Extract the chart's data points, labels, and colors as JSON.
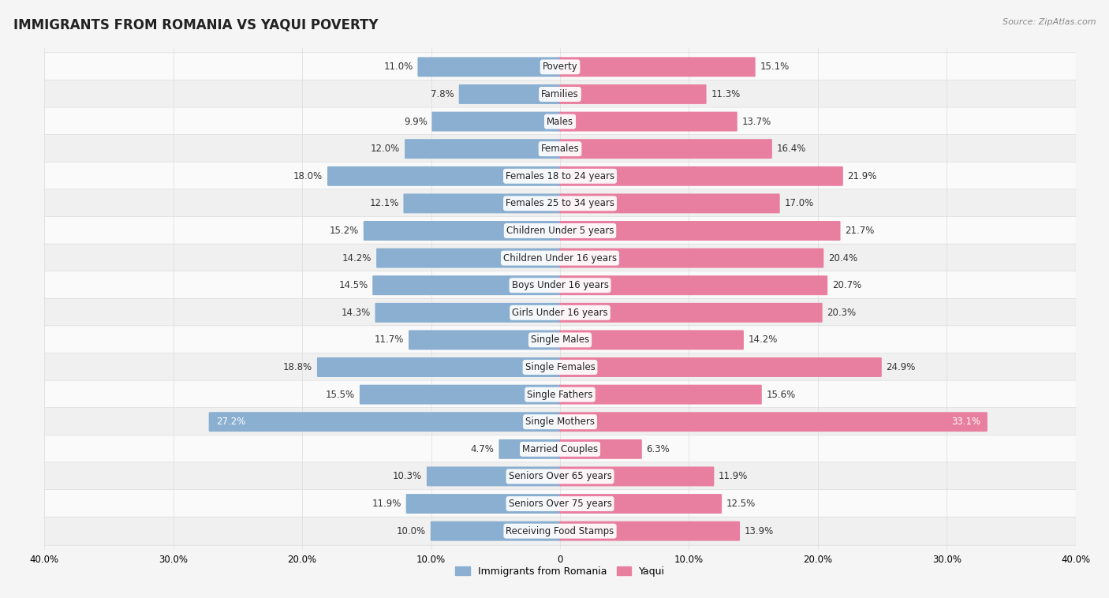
{
  "title": "IMMIGRANTS FROM ROMANIA VS YAQUI POVERTY",
  "source": "Source: ZipAtlas.com",
  "categories": [
    "Poverty",
    "Families",
    "Males",
    "Females",
    "Females 18 to 24 years",
    "Females 25 to 34 years",
    "Children Under 5 years",
    "Children Under 16 years",
    "Boys Under 16 years",
    "Girls Under 16 years",
    "Single Males",
    "Single Females",
    "Single Fathers",
    "Single Mothers",
    "Married Couples",
    "Seniors Over 65 years",
    "Seniors Over 75 years",
    "Receiving Food Stamps"
  ],
  "romania_values": [
    11.0,
    7.8,
    9.9,
    12.0,
    18.0,
    12.1,
    15.2,
    14.2,
    14.5,
    14.3,
    11.7,
    18.8,
    15.5,
    27.2,
    4.7,
    10.3,
    11.9,
    10.0
  ],
  "yaqui_values": [
    15.1,
    11.3,
    13.7,
    16.4,
    21.9,
    17.0,
    21.7,
    20.4,
    20.7,
    20.3,
    14.2,
    24.9,
    15.6,
    33.1,
    6.3,
    11.9,
    12.5,
    13.9
  ],
  "romania_color": "#8aafd0",
  "yaqui_color": "#e87fa0",
  "romania_color_light": "#b0cce4",
  "yaqui_color_light": "#f0a8be",
  "romania_label": "Immigrants from Romania",
  "yaqui_label": "Yaqui",
  "xlim": 40.0,
  "row_bg_odd": "#f0f0f0",
  "row_bg_even": "#fafafa",
  "title_fontsize": 12,
  "label_fontsize": 8.5,
  "value_fontsize": 8.5,
  "legend_fontsize": 9,
  "inside_label_threshold_romania": 22.0,
  "inside_label_threshold_yaqui": 28.0
}
